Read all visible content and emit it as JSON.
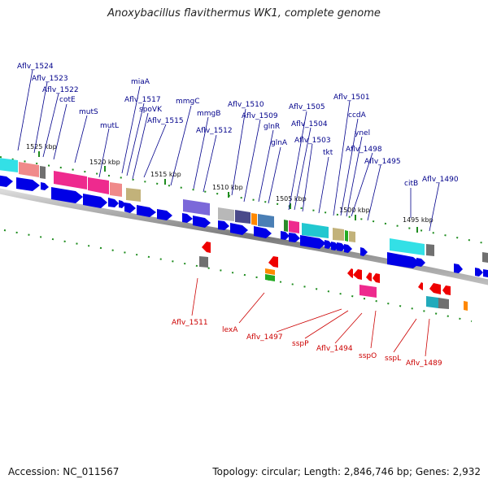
{
  "title": "Anoxybacillus flavithermus WK1, complete genome",
  "footer": {
    "accession": "Accession: NC_011567",
    "topology": "Topology: circular; Length: 2,846,746 bp; Genes: 2,932"
  },
  "colors": {
    "forward_gene": "#0000e6",
    "reverse_gene": "#ee0000",
    "label_forward": "#00008b",
    "label_reverse": "#cc0000",
    "backbone": "#8a8a8a",
    "tick": "#1e8c1e"
  },
  "ruler_labels": [
    "1525 kbp",
    "1520 kbp",
    "1515 kbp",
    "1510 kbp",
    "1505 kbp",
    "1500 kbp",
    "1495 kbp"
  ],
  "forward_labels": [
    "Aflv_1524",
    "Aflv_1523",
    "Aflv_1522",
    "cotE",
    "mutS",
    "mutL",
    "miaA",
    "Aflv_1517",
    "spoVK",
    "Aflv_1515",
    "mmgC",
    "mmgB",
    "Aflv_1512",
    "Aflv_1510",
    "Aflv_1509",
    "glnR",
    "glnA",
    "Aflv_1505",
    "Aflv_1504",
    "Aflv_1503",
    "tkt",
    "Aflv_1501",
    "ccdA",
    "ynel",
    "Aflv_1498",
    "Aflv_1495",
    "citB",
    "Aflv_1490"
  ],
  "reverse_labels": [
    "Aflv_1511",
    "lexA",
    "Aflv_1497",
    "sspP",
    "Aflv_1494",
    "sspO",
    "sspL",
    "Aflv_1489"
  ]
}
